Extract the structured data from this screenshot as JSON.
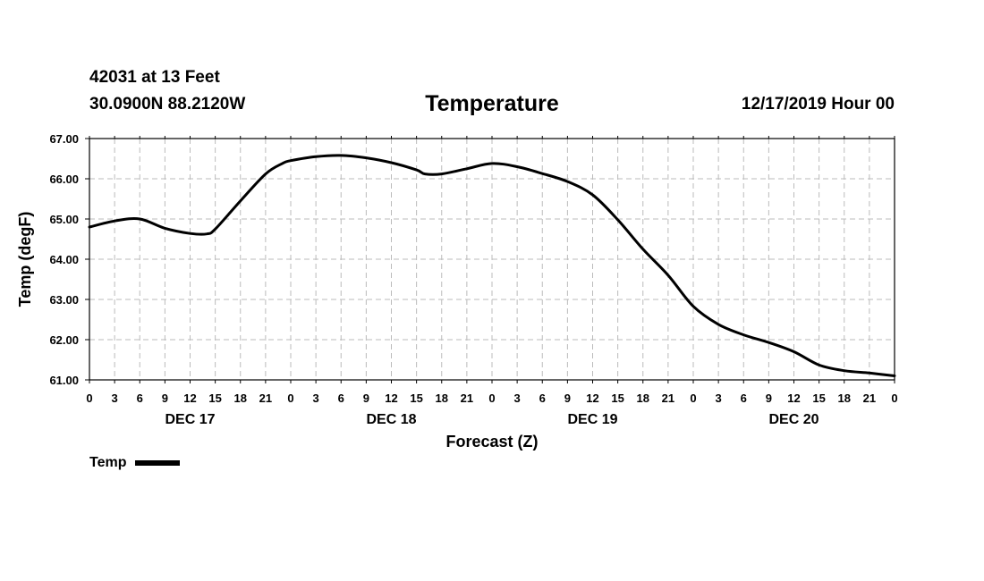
{
  "header": {
    "station": "42031 at 13 Feet",
    "coords": "30.0900N 88.2120W",
    "title": "Temperature",
    "date": "12/17/2019 Hour 00"
  },
  "legend": {
    "label": "Temp"
  },
  "chart_data": {
    "type": "line",
    "title": "Temperature",
    "xlabel": "Forecast (Z)",
    "ylabel": "Temp (degF)",
    "xlim": [
      0,
      96
    ],
    "ylim": [
      61,
      67
    ],
    "grid": true,
    "x_ticks": [
      0,
      3,
      6,
      9,
      12,
      15,
      18,
      21,
      24,
      27,
      30,
      33,
      36,
      39,
      42,
      45,
      48,
      51,
      54,
      57,
      60,
      63,
      66,
      69,
      72,
      75,
      78,
      81,
      84,
      87,
      90,
      93,
      96
    ],
    "x_tick_labels": [
      "0",
      "3",
      "6",
      "9",
      "12",
      "15",
      "18",
      "21",
      "0",
      "3",
      "6",
      "9",
      "12",
      "15",
      "18",
      "21",
      "0",
      "3",
      "6",
      "9",
      "12",
      "15",
      "18",
      "21",
      "0",
      "3",
      "6",
      "9",
      "12",
      "15",
      "18",
      "21",
      "0"
    ],
    "y_ticks": [
      61,
      62,
      63,
      64,
      65,
      66,
      67
    ],
    "y_tick_labels": [
      "61.00",
      "62.00",
      "63.00",
      "64.00",
      "65.00",
      "66.00",
      "67.00"
    ],
    "day_labels": [
      {
        "text": "DEC 17",
        "x": 12
      },
      {
        "text": "DEC 18",
        "x": 36
      },
      {
        "text": "DEC 19",
        "x": 60
      },
      {
        "text": "DEC 20",
        "x": 84
      }
    ],
    "legend_position": "bottom-left",
    "series": [
      {
        "name": "Temp",
        "color": "#000000",
        "x": [
          0,
          3,
          6,
          9,
          12,
          14,
          15,
          18,
          21,
          23,
          24,
          27,
          30,
          33,
          36,
          39,
          40,
          42,
          45,
          48,
          51,
          54,
          57,
          60,
          63,
          66,
          69,
          72,
          75,
          78,
          81,
          84,
          87,
          90,
          93,
          96
        ],
        "values": [
          64.8,
          64.95,
          65.0,
          64.77,
          64.64,
          64.63,
          64.75,
          65.45,
          66.12,
          66.38,
          66.45,
          66.55,
          66.58,
          66.52,
          66.4,
          66.22,
          66.12,
          66.12,
          66.25,
          66.38,
          66.3,
          66.13,
          65.93,
          65.6,
          64.98,
          64.25,
          63.6,
          62.83,
          62.38,
          62.12,
          61.93,
          61.7,
          61.37,
          61.23,
          61.17,
          61.1
        ]
      }
    ]
  }
}
